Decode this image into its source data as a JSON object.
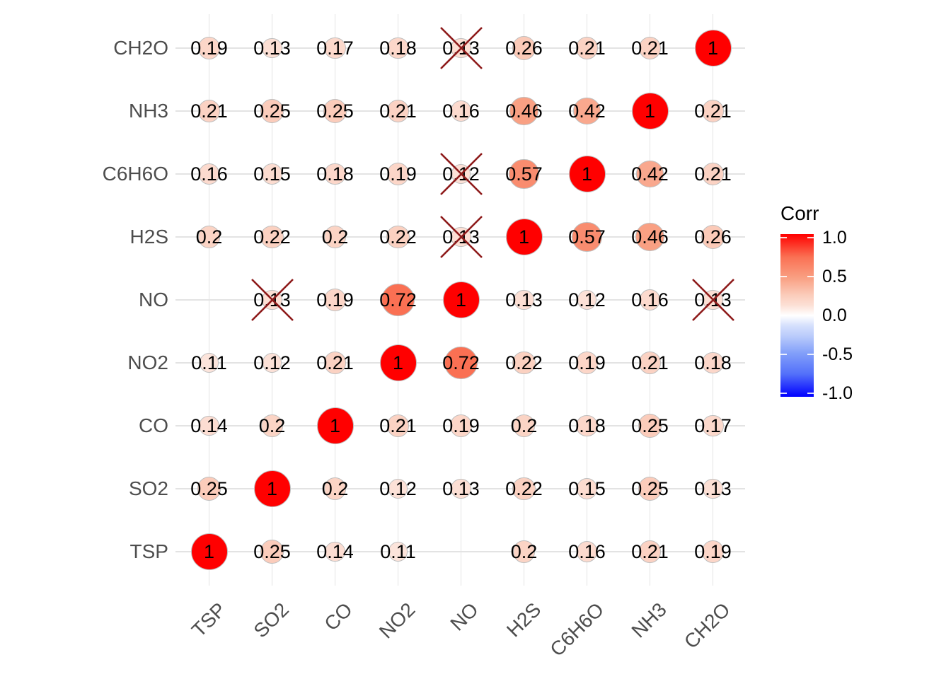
{
  "chart_data": {
    "type": "heatmap",
    "subtype": "correlation-bubble-matrix",
    "title": "",
    "x_categories": [
      "TSP",
      "SO2",
      "CO",
      "NO2",
      "NO",
      "H2S",
      "C6H6O",
      "NH3",
      "CH2O"
    ],
    "y_categories_top_to_bottom": [
      "CH2O",
      "NH3",
      "C6H6O",
      "H2S",
      "NO",
      "NO2",
      "CO",
      "SO2",
      "TSP"
    ],
    "rows": [
      {
        "name": "CH2O",
        "values": [
          0.19,
          0.13,
          0.17,
          0.18,
          0.13,
          0.26,
          0.21,
          0.21,
          1
        ],
        "crossed": [
          false,
          false,
          false,
          false,
          true,
          false,
          false,
          false,
          false
        ]
      },
      {
        "name": "NH3",
        "values": [
          0.21,
          0.25,
          0.25,
          0.21,
          0.16,
          0.46,
          0.42,
          1,
          0.21
        ],
        "crossed": [
          false,
          false,
          false,
          false,
          false,
          false,
          false,
          false,
          false
        ]
      },
      {
        "name": "C6H6O",
        "values": [
          0.16,
          0.15,
          0.18,
          0.19,
          0.12,
          0.57,
          1,
          0.42,
          0.21
        ],
        "crossed": [
          false,
          false,
          false,
          false,
          true,
          false,
          false,
          false,
          false
        ]
      },
      {
        "name": "H2S",
        "values": [
          0.2,
          0.22,
          0.2,
          0.22,
          0.13,
          1,
          0.57,
          0.46,
          0.26
        ],
        "crossed": [
          false,
          false,
          false,
          false,
          true,
          false,
          false,
          false,
          false
        ]
      },
      {
        "name": "NO",
        "values": [
          null,
          0.13,
          0.19,
          0.72,
          1,
          0.13,
          0.12,
          0.16,
          0.13
        ],
        "crossed": [
          false,
          true,
          false,
          false,
          false,
          false,
          false,
          false,
          true
        ]
      },
      {
        "name": "NO2",
        "values": [
          0.11,
          0.12,
          0.21,
          1,
          0.72,
          0.22,
          0.19,
          0.21,
          0.18
        ],
        "crossed": [
          false,
          false,
          false,
          false,
          false,
          false,
          false,
          false,
          false
        ]
      },
      {
        "name": "CO",
        "values": [
          0.14,
          0.2,
          1,
          0.21,
          0.19,
          0.2,
          0.18,
          0.25,
          0.17
        ],
        "crossed": [
          false,
          false,
          false,
          false,
          false,
          false,
          false,
          false,
          false
        ]
      },
      {
        "name": "SO2",
        "values": [
          0.25,
          1,
          0.2,
          0.12,
          0.13,
          0.22,
          0.15,
          0.25,
          0.13
        ],
        "crossed": [
          false,
          false,
          false,
          false,
          false,
          false,
          false,
          false,
          false
        ]
      },
      {
        "name": "TSP",
        "values": [
          1,
          0.25,
          0.14,
          0.11,
          null,
          0.2,
          0.16,
          0.21,
          0.19
        ],
        "crossed": [
          false,
          false,
          false,
          false,
          false,
          false,
          false,
          false,
          false
        ]
      }
    ],
    "legend": {
      "title": "Corr",
      "tick_labels": [
        "1.0",
        "0.5",
        "0.0",
        "-0.5",
        "-1.0"
      ],
      "tick_values": [
        1,
        0.5,
        0,
        -0.5,
        -1
      ],
      "range": [
        -1,
        1
      ],
      "position": "right"
    },
    "colors": {
      "positive_max": "#ff0000",
      "zero": "#ffffff",
      "negative_max": "#0000ff",
      "cross": "#8e1b1b",
      "grid": "#e3e3e3",
      "axis_text": "#4d4d4d",
      "value_text": "#000000",
      "circle_border": "#bebebe",
      "background": "#ffffff"
    },
    "color_stops": [
      [
        0,
        "#ffffff"
      ],
      [
        0.13,
        "#fcdfd4"
      ],
      [
        0.25,
        "#fbccbb"
      ],
      [
        0.46,
        "#f9a083"
      ],
      [
        0.72,
        "#fa7053"
      ],
      [
        1,
        "#ff0000"
      ]
    ],
    "grid": true
  }
}
